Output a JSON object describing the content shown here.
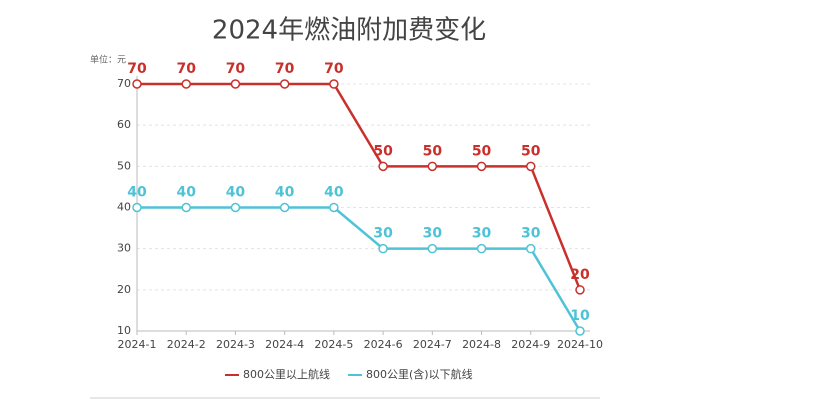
{
  "chart_data": {
    "type": "line",
    "title": "2024年燃油附加费变化",
    "unit_label": "单位：元",
    "categories": [
      "2024-1",
      "2024-2",
      "2024-3",
      "2024-4",
      "2024-5",
      "2024-6",
      "2024-7",
      "2024-8",
      "2024-9",
      "2024-10"
    ],
    "series": [
      {
        "name": "800公里以上航线",
        "color": "#c9302c",
        "values": [
          70,
          70,
          70,
          70,
          70,
          50,
          50,
          50,
          50,
          20
        ]
      },
      {
        "name": "800公里(含)以下航线",
        "color": "#4fc3d6",
        "values": [
          40,
          40,
          40,
          40,
          40,
          30,
          30,
          30,
          30,
          10
        ]
      }
    ],
    "ylim": [
      10,
      70
    ],
    "yticks": [
      10,
      20,
      30,
      40,
      50,
      60,
      70
    ],
    "grid": true,
    "data_labels": true
  }
}
